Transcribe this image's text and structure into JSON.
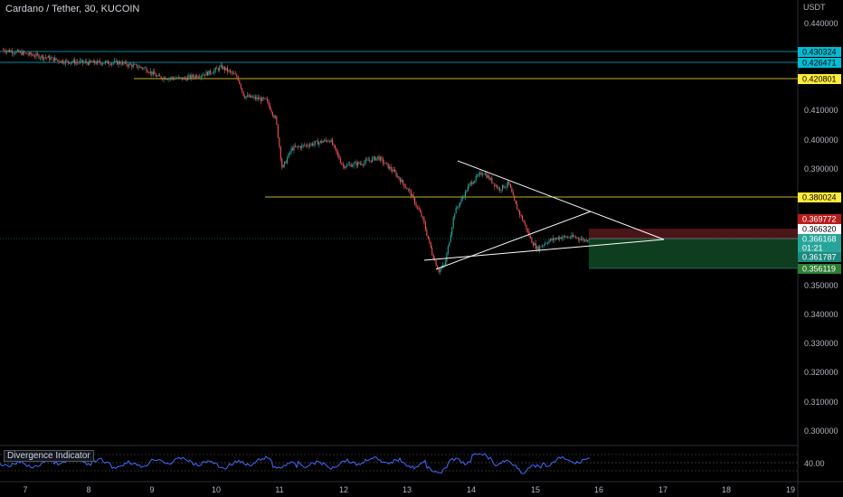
{
  "header": {
    "title": "Cardano / Tether, 30, KUCOIN"
  },
  "axis": {
    "currency": "USDT",
    "price_ticks": [
      "0.440000",
      "0.410000",
      "0.400000",
      "0.390000",
      "0.350000",
      "0.340000",
      "0.330000",
      "0.320000",
      "0.310000",
      "0.300000"
    ],
    "date_ticks": [
      "7",
      "8",
      "9",
      "10",
      "11",
      "12",
      "13",
      "14",
      "15",
      "16",
      "17",
      "18",
      "19"
    ]
  },
  "indicator": {
    "name": "Divergence Indicator",
    "value_label": "40.00"
  },
  "price_labels": {
    "level_1": "0.430324",
    "level_2": "0.426471",
    "level_3": "0.420801",
    "level_4": "0.380024",
    "stop": "0.369772",
    "bid": "0.366320",
    "last": "0.366168",
    "countdown": "01:21",
    "ask": "0.361787",
    "target": "0.356119"
  },
  "colors": {
    "up": "#26a69a",
    "down": "#ef5350",
    "cyan_level": "#00bcd4",
    "yellow_level": "#ffeb3b",
    "stop_zone": "#4a1518",
    "target_zone": "#0f3d20",
    "indicator_line": "#3f6bff"
  },
  "chart_data": {
    "type": "candlestick",
    "title": "Cardano / Tether, 30, KUCOIN",
    "ylim": [
      0.2955,
      0.445
    ],
    "x_range": [
      6.65,
      19.3
    ],
    "horizontal_levels": [
      0.430324,
      0.426471,
      0.420801,
      0.380024
    ],
    "path": [
      [
        6.65,
        0.431
      ],
      [
        7.3,
        0.4285
      ],
      [
        7.6,
        0.427
      ],
      [
        8.0,
        0.4265
      ],
      [
        8.5,
        0.4265
      ],
      [
        8.9,
        0.4245
      ],
      [
        9.1,
        0.4215
      ],
      [
        9.5,
        0.421
      ],
      [
        9.9,
        0.423
      ],
      [
        10.1,
        0.425
      ],
      [
        10.35,
        0.4215
      ],
      [
        10.45,
        0.415
      ],
      [
        10.8,
        0.4135
      ],
      [
        10.95,
        0.407
      ],
      [
        11.05,
        0.39
      ],
      [
        11.2,
        0.397
      ],
      [
        11.5,
        0.3985
      ],
      [
        11.8,
        0.4
      ],
      [
        12.0,
        0.391
      ],
      [
        12.3,
        0.392
      ],
      [
        12.55,
        0.394
      ],
      [
        12.8,
        0.389
      ],
      [
        13.05,
        0.382
      ],
      [
        13.25,
        0.373
      ],
      [
        13.4,
        0.361
      ],
      [
        13.5,
        0.355
      ],
      [
        13.6,
        0.357
      ],
      [
        13.75,
        0.375
      ],
      [
        14.0,
        0.385
      ],
      [
        14.2,
        0.389
      ],
      [
        14.45,
        0.383
      ],
      [
        14.6,
        0.385
      ],
      [
        14.7,
        0.378
      ],
      [
        14.85,
        0.371
      ],
      [
        14.95,
        0.3655
      ],
      [
        15.05,
        0.3625
      ],
      [
        15.2,
        0.365
      ],
      [
        15.4,
        0.3665
      ],
      [
        15.65,
        0.3665
      ],
      [
        15.8,
        0.3655
      ],
      [
        15.85,
        0.36617
      ]
    ]
  }
}
